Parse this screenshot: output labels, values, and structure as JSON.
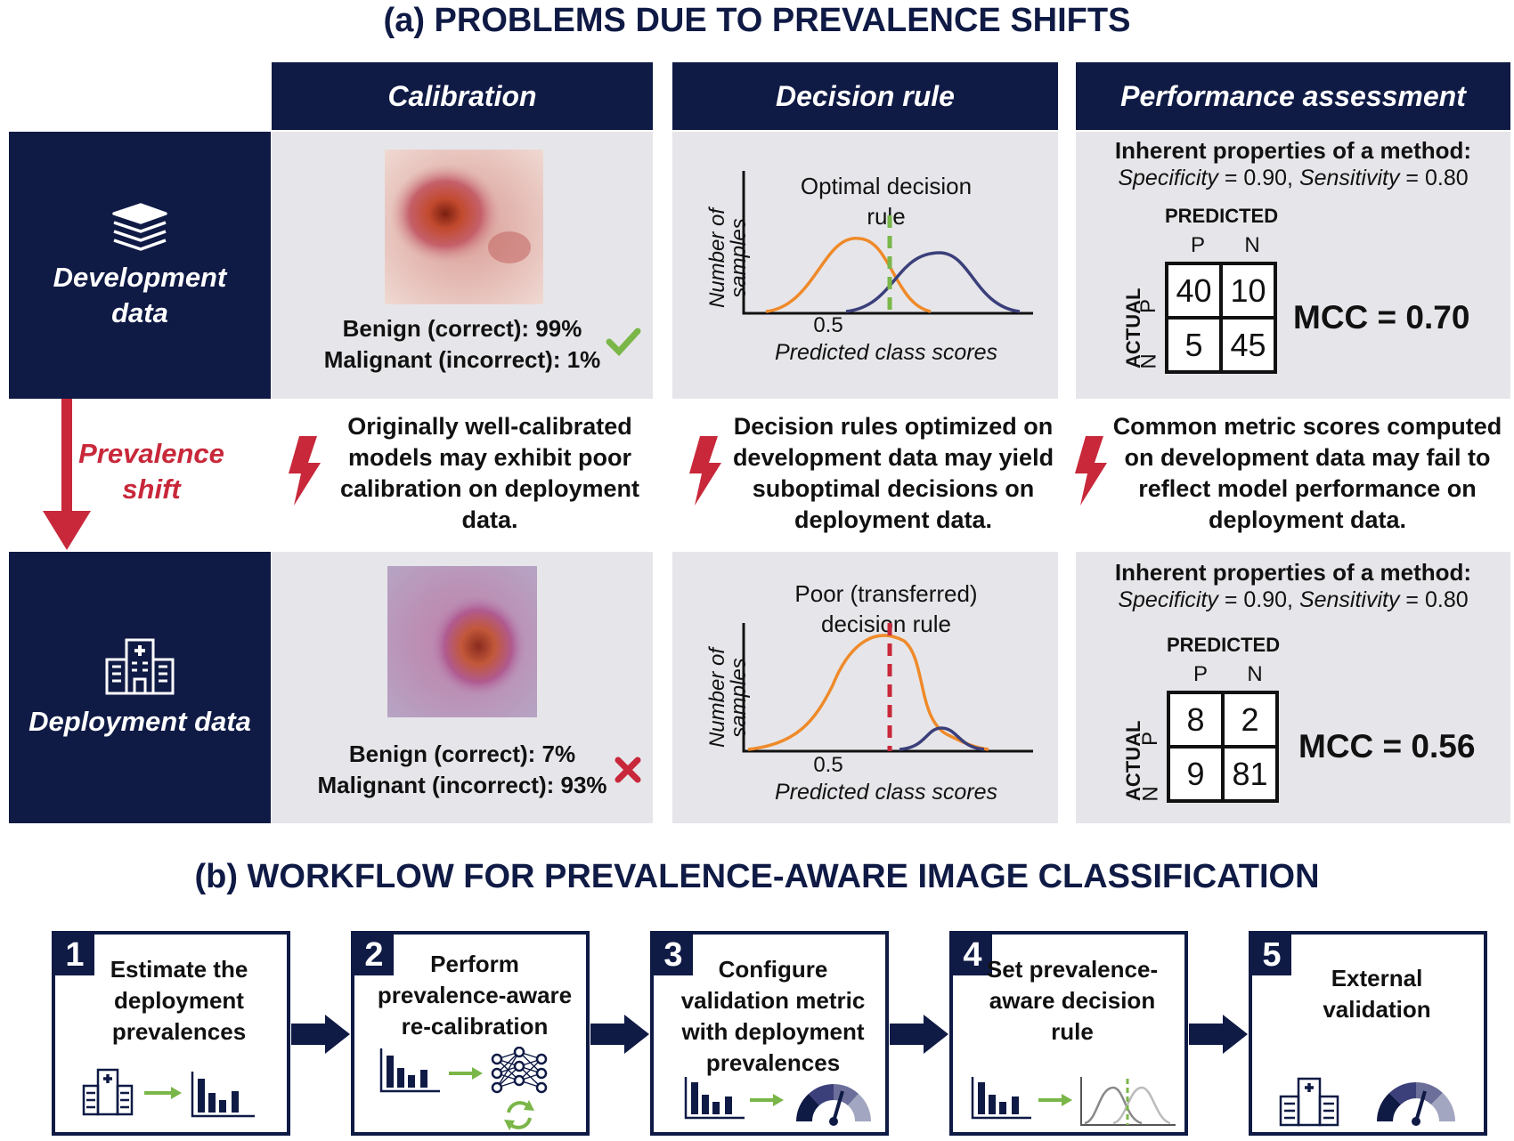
{
  "part_a": {
    "title": "(a) PROBLEMS DUE TO PREVALENCE SHIFTS",
    "columns": [
      "Calibration",
      "Decision rule",
      "Performance assessment"
    ],
    "rows": {
      "development": "Development data",
      "deployment": "Deployment data"
    },
    "shift_label": "Prevalence shift",
    "calibration": {
      "dev_line1": "Benign (correct): 99%",
      "dev_line2": "Malignant (incorrect): 1%",
      "dep_line1": "Benign (correct): 7%",
      "dep_line2": "Malignant (incorrect): 93%"
    },
    "decision_rule": {
      "y_axis": "Number of samples",
      "x_axis": "Predicted class scores",
      "tick": "0.5",
      "dev_rule": "Optimal decision rule",
      "dep_rule": "Poor (transferred) decision rule"
    },
    "performance": {
      "heading": "Inherent properties of a method:",
      "spec_label": "Specificity",
      "spec_value": " = 0.90, ",
      "sens_label": "Sensitivity",
      "sens_value": " = 0.80",
      "predicted": "PREDICTED",
      "actual": "ACTUAL",
      "p": "P",
      "n": "N",
      "dev_matrix": [
        "40",
        "10",
        "5",
        "45"
      ],
      "dev_mcc": "MCC = 0.70",
      "dep_matrix": [
        "8",
        "2",
        "9",
        "81"
      ],
      "dep_mcc": "MCC = 0.56"
    },
    "problems": [
      "Originally well-calibrated models may exhibit poor calibration on deployment data.",
      "Decision rules optimized on development data may yield suboptimal decisions on deployment data.",
      "Common metric scores computed on development data may fail to reflect model performance on deployment data."
    ]
  },
  "part_b": {
    "title": "(b) WORKFLOW FOR PREVALENCE-AWARE IMAGE CLASSIFICATION",
    "steps": [
      {
        "num": "1",
        "text": "Estimate the deployment prevalences"
      },
      {
        "num": "2",
        "text": "Perform prevalence-aware re-calibration"
      },
      {
        "num": "3",
        "text": "Configure validation metric with deployment prevalences"
      },
      {
        "num": "4",
        "text": "Set prevalence-aware decision rule"
      },
      {
        "num": "5",
        "text": "External validation"
      }
    ]
  },
  "colors": {
    "navy": "#0f1a45",
    "red": "#c8283a",
    "orange": "#ef8a2a",
    "green": "#7ab648"
  }
}
